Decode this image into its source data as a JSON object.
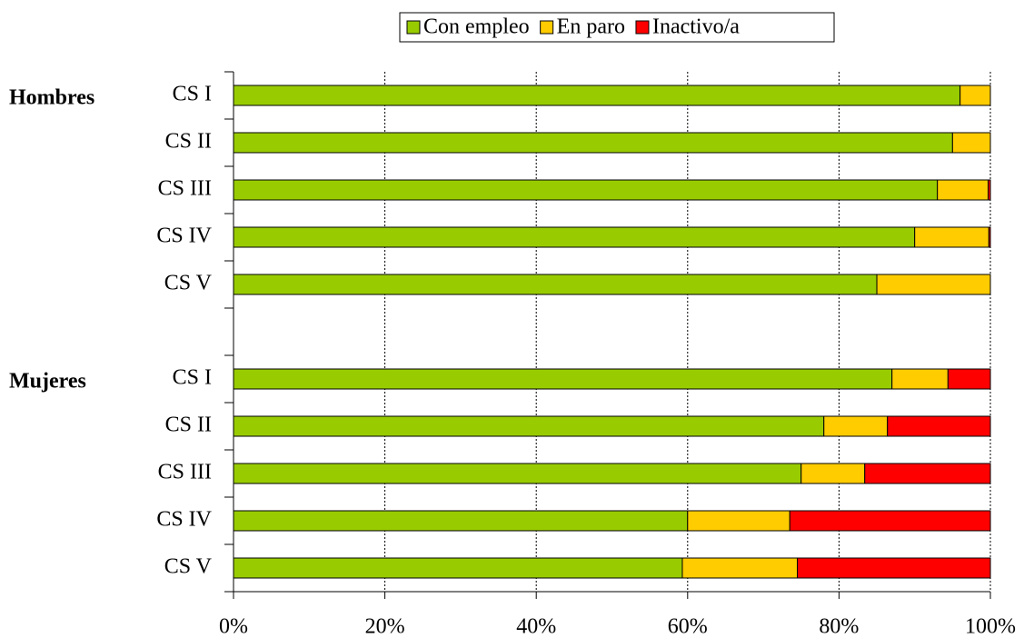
{
  "chart_data": {
    "type": "stacked_bar_horizontal",
    "group_labels": [
      "Hombres",
      "Mujeres"
    ],
    "categories": [
      "CS I",
      "CS II",
      "CS III",
      "CS IV",
      "CS V",
      null,
      "CS I",
      "CS II",
      "CS III",
      "CS IV",
      "CS V"
    ],
    "series": [
      {
        "name": "Con empleo",
        "color": "#99cc00",
        "values": [
          96,
          95,
          93,
          90,
          85,
          null,
          87,
          78,
          75,
          60,
          59.3
        ]
      },
      {
        "name": "En paro",
        "color": "#ffcc00",
        "values": [
          4,
          5,
          6.7,
          9.8,
          15,
          null,
          7.4,
          8.4,
          8.4,
          13.5,
          15.2
        ]
      },
      {
        "name": "Inactivo/a",
        "color": "#ff0000",
        "values": [
          0,
          0,
          0.3,
          0.2,
          0,
          null,
          5.6,
          13.6,
          16.6,
          26.5,
          25.5
        ]
      }
    ],
    "xlim": [
      0,
      100
    ],
    "xticks": [
      {
        "value": 0,
        "label": "0%"
      },
      {
        "value": 20,
        "label": "20%"
      },
      {
        "value": 40,
        "label": "40%"
      },
      {
        "value": 60,
        "label": "60%"
      },
      {
        "value": 80,
        "label": "80%"
      },
      {
        "value": 100,
        "label": "100%"
      }
    ],
    "grid": true,
    "legend": "top"
  }
}
